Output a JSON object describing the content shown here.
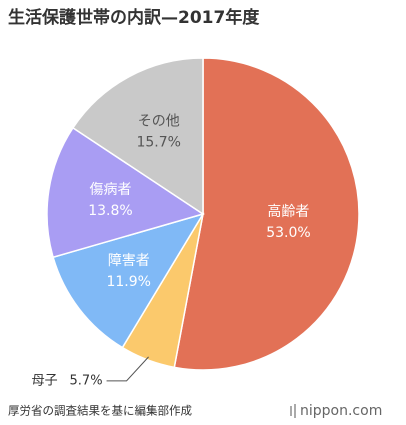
{
  "chart_data": {
    "type": "pie",
    "title": "生活保護世帯の内訳—2017年度",
    "categories": [
      "高齢者",
      "母子",
      "障害者",
      "傷病者",
      "その他"
    ],
    "values": [
      53.0,
      5.7,
      11.9,
      13.8,
      15.7
    ],
    "value_labels": [
      "53.0%",
      "5.7%",
      "11.9%",
      "13.8%",
      "15.7%"
    ],
    "colors": [
      "#e27156",
      "#fbc96c",
      "#80b9f6",
      "#a99df3",
      "#c9c9c9"
    ],
    "source": "厚労省の調査結果を基に編集部作成",
    "brand": "nippon.com"
  }
}
